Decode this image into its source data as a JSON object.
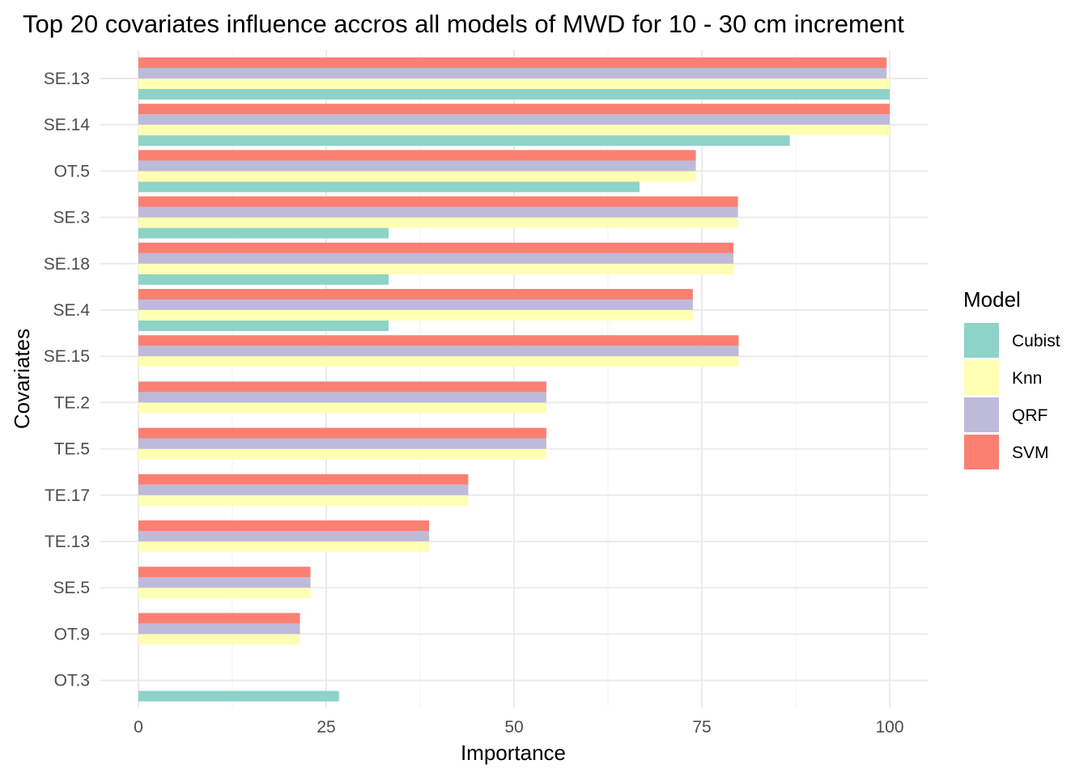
{
  "chart_data": {
    "type": "bar",
    "orientation": "horizontal",
    "title": "Top 20 covariates influence accros all models of MWD for 10 - 30 cm increment",
    "xlabel": "Importance",
    "ylabel": "Covariates",
    "xlim": [
      0,
      100
    ],
    "xticks": [
      "0",
      "25",
      "50",
      "75",
      "100"
    ],
    "categories": [
      "SE.13",
      "SE.14",
      "OT.5",
      "SE.3",
      "SE.18",
      "SE.4",
      "SE.15",
      "TE.2",
      "TE.5",
      "TE.17",
      "TE.13",
      "SE.5",
      "OT.9",
      "OT.3"
    ],
    "series": [
      {
        "name": "Cubist",
        "color": "#8dd3c7",
        "values": [
          100,
          86.7,
          66.7,
          33.3,
          33.3,
          33.3,
          null,
          null,
          null,
          null,
          null,
          null,
          null,
          26.7
        ]
      },
      {
        "name": "Knn",
        "color": "#ffffb3",
        "values": [
          100,
          100,
          74.2,
          79.8,
          79.2,
          73.8,
          79.9,
          54.3,
          54.3,
          43.9,
          38.7,
          22.9,
          21.5,
          null
        ]
      },
      {
        "name": "QRF",
        "color": "#bebada",
        "values": [
          99.6,
          100,
          74.2,
          79.8,
          79.2,
          73.8,
          79.9,
          54.3,
          54.3,
          43.9,
          38.7,
          22.9,
          21.5,
          null
        ]
      },
      {
        "name": "SVM",
        "color": "#fb8072",
        "values": [
          99.6,
          100,
          74.2,
          79.8,
          79.2,
          73.8,
          79.9,
          54.3,
          54.3,
          43.9,
          38.7,
          22.9,
          21.5,
          null
        ]
      }
    ],
    "legend": {
      "title": "Model",
      "position": "right"
    },
    "grid": true
  }
}
